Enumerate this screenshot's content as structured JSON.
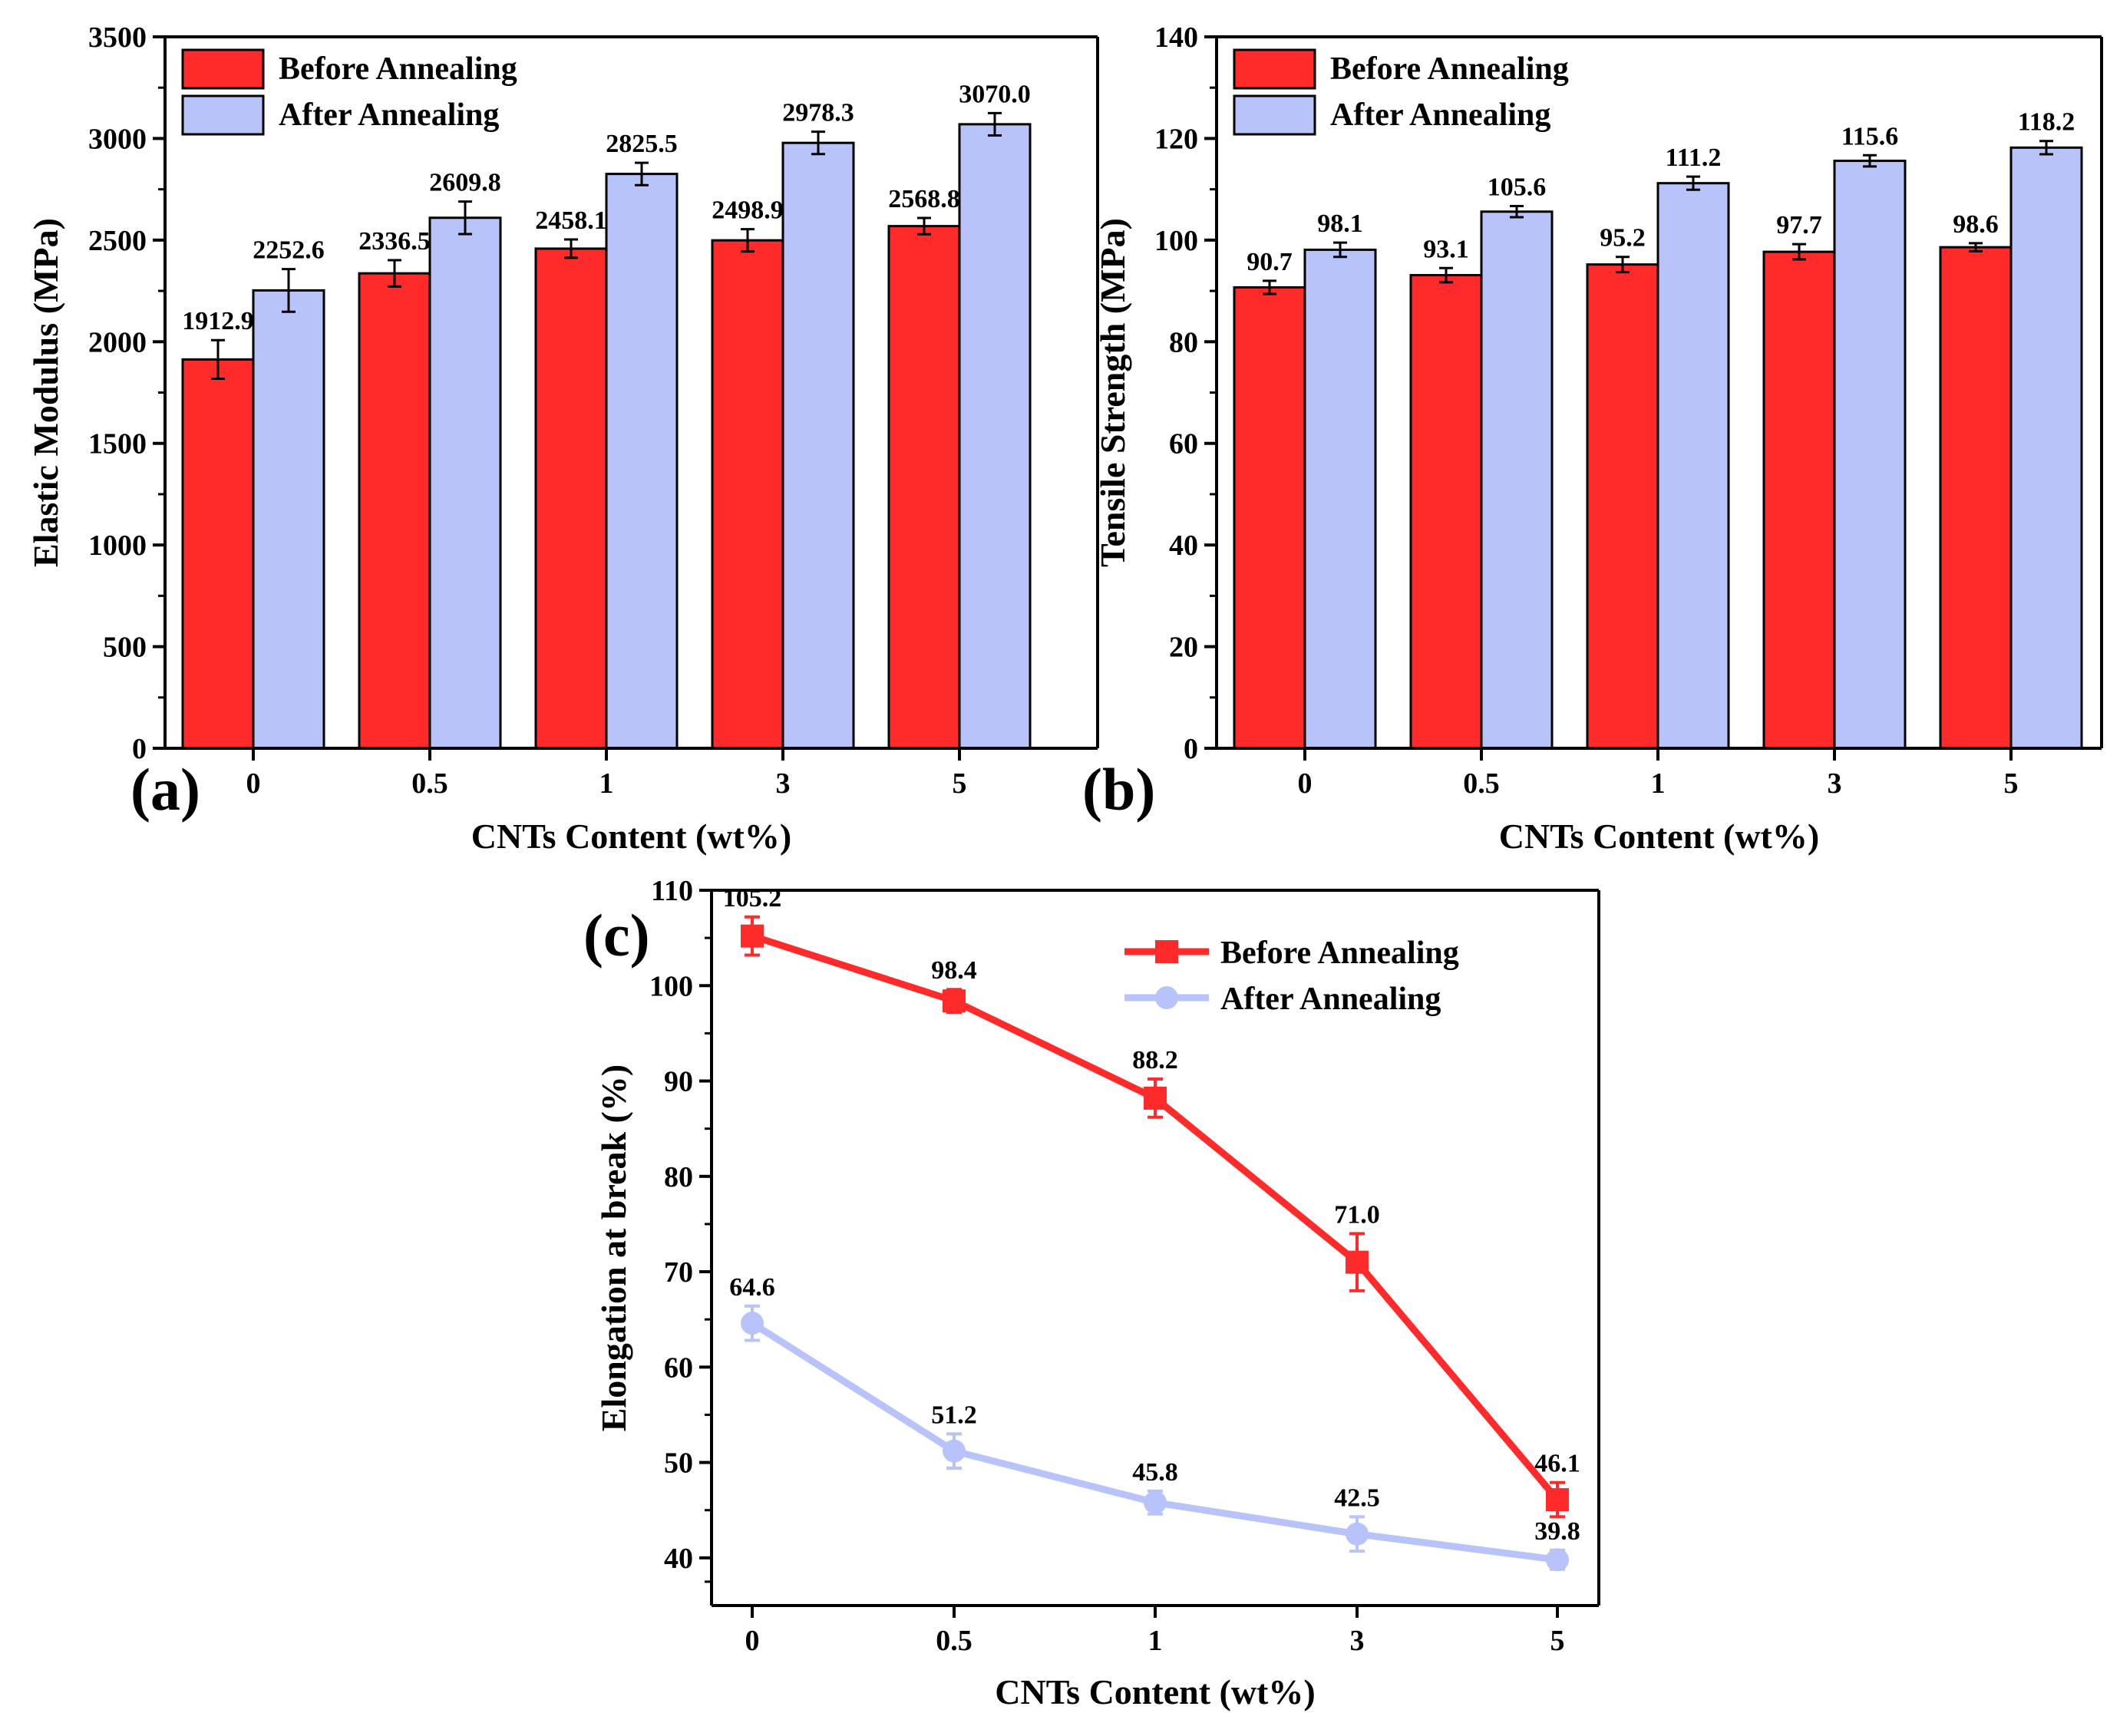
{
  "colors": {
    "before": "#ff2a2a",
    "after": "#b7c3f9",
    "axis": "#000000"
  },
  "chart_data": [
    {
      "panel": "(a)",
      "type": "bar",
      "categories": [
        "0",
        "0.5",
        "1",
        "3",
        "5"
      ],
      "xlabel": "CNTs Content (wt%)",
      "ylabel": "Elastic Modulus (MPa)",
      "ylim": [
        0,
        3500
      ],
      "yticks": [
        "0",
        "500",
        "1000",
        "1500",
        "2000",
        "2500",
        "3000",
        "3500"
      ],
      "ytick_values": [
        0,
        500,
        1000,
        1500,
        2000,
        2500,
        3000,
        3500
      ],
      "legend_position": "top-left",
      "series": [
        {
          "name": "Before Annealing",
          "values": [
            1912.9,
            2336.5,
            2458.1,
            2498.9,
            2568.8
          ],
          "labels": [
            "1912.9",
            "2336.5",
            "2458.1",
            "2498.9",
            "2568.8"
          ],
          "errors": [
            95,
            65,
            45,
            55,
            40
          ]
        },
        {
          "name": "After Annealing",
          "values": [
            2252.6,
            2609.8,
            2825.5,
            2978.3,
            3070.0
          ],
          "labels": [
            "2252.6",
            "2609.8",
            "2825.5",
            "2978.3",
            "3070.0"
          ],
          "errors": [
            105,
            80,
            55,
            55,
            55
          ]
        }
      ]
    },
    {
      "panel": "(b)",
      "type": "bar",
      "categories": [
        "0",
        "0.5",
        "1",
        "3",
        "5"
      ],
      "xlabel": "CNTs Content (wt%)",
      "ylabel": "Tensile Strength (MPa)",
      "ylim": [
        0,
        140
      ],
      "yticks": [
        "0",
        "20",
        "40",
        "60",
        "80",
        "100",
        "120",
        "140"
      ],
      "ytick_values": [
        0,
        20,
        40,
        60,
        80,
        100,
        120,
        140
      ],
      "legend_position": "top-left",
      "series": [
        {
          "name": "Before Annealing",
          "values": [
            90.7,
            93.1,
            95.2,
            97.7,
            98.6
          ],
          "labels": [
            "90.7",
            "93.1",
            "95.2",
            "97.7",
            "98.6"
          ],
          "errors": [
            1.3,
            1.4,
            1.5,
            1.5,
            0.8
          ]
        },
        {
          "name": "After Annealing",
          "values": [
            98.1,
            105.6,
            111.2,
            115.6,
            118.2
          ],
          "labels": [
            "98.1",
            "105.6",
            "111.2",
            "115.6",
            "118.2"
          ],
          "errors": [
            1.4,
            1.1,
            1.3,
            1.1,
            1.3
          ]
        }
      ]
    },
    {
      "panel": "(c)",
      "type": "line",
      "categories": [
        "0",
        "0.5",
        "1",
        "3",
        "5"
      ],
      "xlabel": "CNTs Content (wt%)",
      "ylabel": "Elongation at break (%)",
      "ylim": [
        35,
        110
      ],
      "yticks": [
        "40",
        "50",
        "60",
        "70",
        "80",
        "90",
        "100",
        "110"
      ],
      "ytick_values": [
        40,
        50,
        60,
        70,
        80,
        90,
        100,
        110
      ],
      "legend_position": "top-right",
      "series": [
        {
          "name": "Before Annealing",
          "marker": "square",
          "values": [
            105.2,
            98.4,
            88.2,
            71.0,
            46.1
          ],
          "labels": [
            "105.2",
            "98.4",
            "88.2",
            "71.0",
            "46.1"
          ],
          "errors": [
            2.0,
            1.2,
            2.0,
            3.0,
            1.8
          ]
        },
        {
          "name": "After Annealing",
          "marker": "circle",
          "values": [
            64.6,
            51.2,
            45.8,
            42.5,
            39.8
          ],
          "labels": [
            "64.6",
            "51.2",
            "45.8",
            "42.5",
            "39.8"
          ],
          "errors": [
            1.8,
            1.8,
            1.2,
            1.8,
            1.0
          ]
        }
      ]
    }
  ]
}
